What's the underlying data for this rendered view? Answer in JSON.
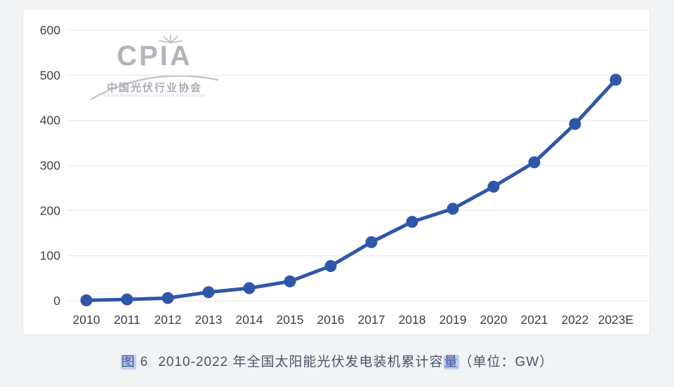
{
  "page": {
    "background": "#f1f3f5"
  },
  "panel": {
    "background": "#ffffff",
    "border_color": "#e2e5e8"
  },
  "logo": {
    "acronym": "CPIA",
    "name_cn": "中国光伏行业协会",
    "name_en": "China Photovoltaic Industry Association",
    "color": "#b2b5bc"
  },
  "caption": {
    "fig_char": "图",
    "fig_num": "6",
    "body": "2010-2022 年全国太阳能光伏发电装机累计容",
    "highlight": "量",
    "unit": "（单位：GW）",
    "color": "#4c5568"
  },
  "chart_data": {
    "type": "line",
    "title": "图 6 2010-2022 年全国太阳能光伏发电装机累计容量（单位：GW）",
    "series_name": "全国太阳能光伏发电装机累计容量",
    "categories": [
      "2010",
      "2011",
      "2012",
      "2013",
      "2014",
      "2015",
      "2016",
      "2017",
      "2018",
      "2019",
      "2020",
      "2021",
      "2022",
      "2023E"
    ],
    "values": [
      1,
      3,
      6,
      19,
      28,
      43,
      77,
      130,
      175,
      204,
      253,
      307,
      392,
      490
    ],
    "xlabel": "",
    "ylabel": "",
    "unit": "GW",
    "ylim": [
      0,
      600
    ],
    "yticks": [
      0,
      100,
      200,
      300,
      400,
      500,
      600
    ],
    "grid": true,
    "legend": "none",
    "line_color": "#2f56a8",
    "marker_color": "#2f56a8",
    "gridline_color": "#e9ebee",
    "tick_color": "#3c414c"
  }
}
